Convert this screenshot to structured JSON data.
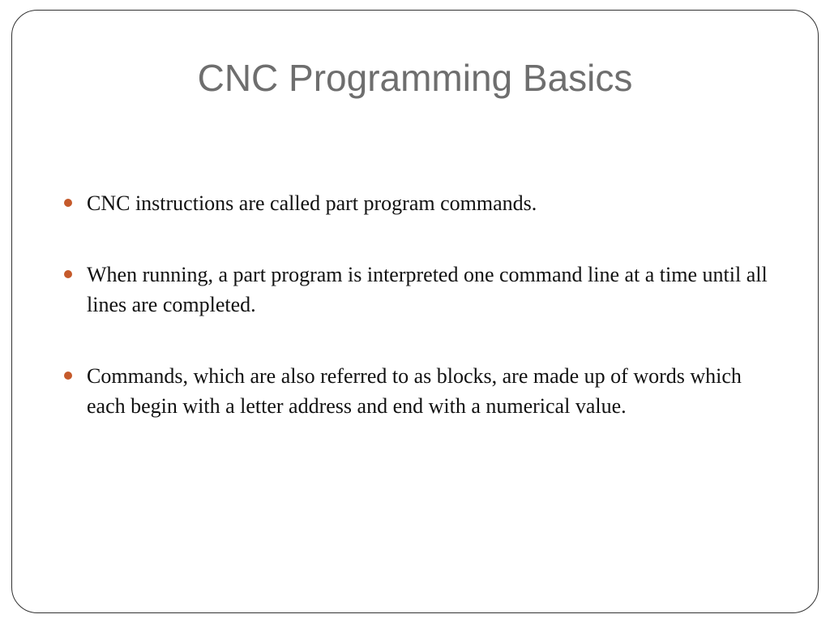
{
  "slide": {
    "title": "CNC Programming Basics",
    "bullets": [
      "CNC instructions are called part program commands.",
      "When running, a part program is interpreted one command line at a time until all lines are completed.",
      "Commands, which are also referred to as blocks, are made up of words which each begin with a letter address and end with a numerical value."
    ],
    "styling": {
      "title_color": "#6e6e6e",
      "title_fontsize": 46,
      "title_fontfamily": "Segoe UI, Arial, sans-serif",
      "body_color": "#111111",
      "body_fontsize": 26,
      "body_fontfamily": "Georgia, Times New Roman, serif",
      "bullet_color": "#c55a2b",
      "frame_border_color": "#333333",
      "frame_border_radius": 32,
      "background_color": "#ffffff"
    }
  }
}
